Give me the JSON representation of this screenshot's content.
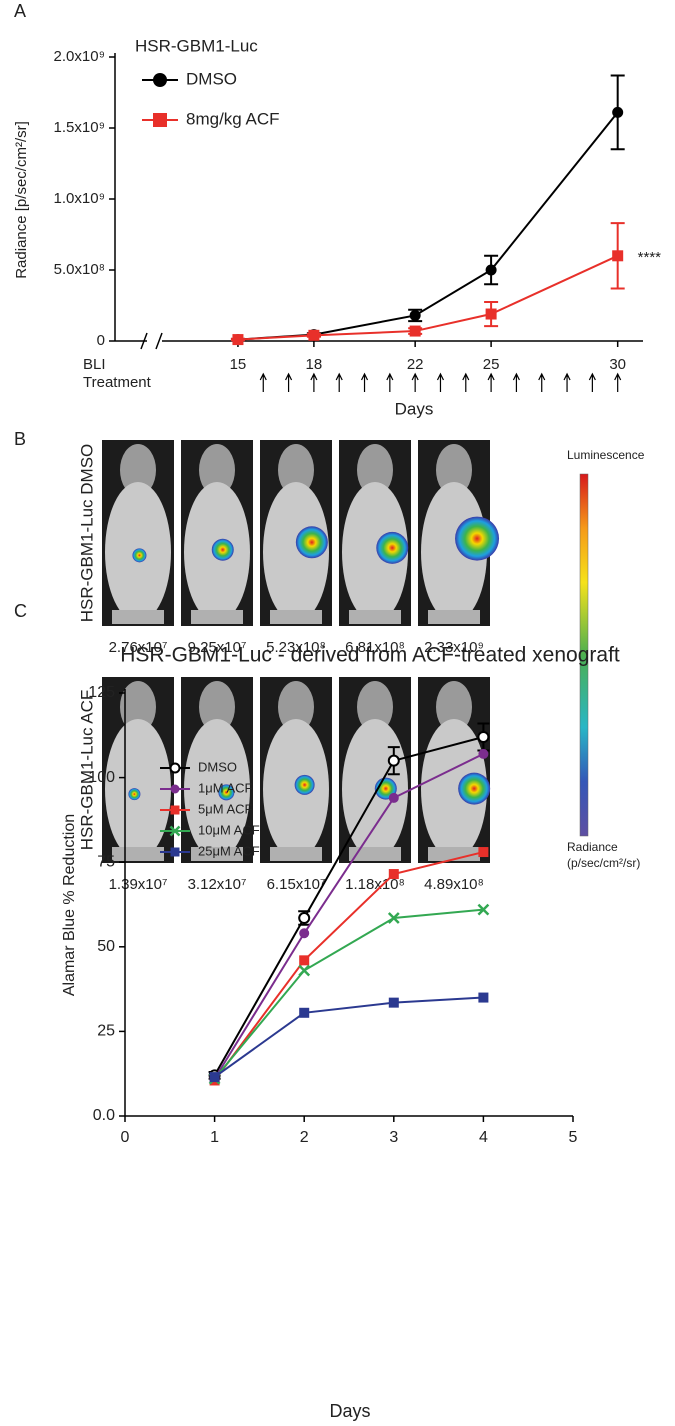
{
  "chart_data": [
    {
      "type": "line",
      "panel_label": "A",
      "subtitle": "HSR-GBM1-Luc",
      "xlabel": "Days",
      "ylabel": "Radiance [p/sec/cm²/sr]",
      "x": [
        15,
        18,
        22,
        25,
        30
      ],
      "series": [
        {
          "name": "DMSO",
          "color": "#000000",
          "marker": "circle",
          "values": [
            10000000,
            45000000,
            180000000,
            500000000,
            1610000000
          ],
          "errors": [
            5000000,
            10000000,
            40000000,
            100000000,
            260000000
          ]
        },
        {
          "name": "8mg/kg ACF",
          "color": "#e8302a",
          "marker": "square",
          "values": [
            10000000,
            40000000,
            70000000,
            190000000,
            600000000
          ],
          "errors": [
            5000000,
            10000000,
            20000000,
            85000000,
            230000000
          ]
        }
      ],
      "xlim": [
        12,
        31
      ],
      "xticks": [
        15,
        18,
        22,
        25,
        30
      ],
      "ylim": [
        0,
        2000000000
      ],
      "yticks": [
        0,
        {
          "value": 500000000,
          "label": "5.0x10⁸"
        },
        {
          "value": 1000000000,
          "label": "1.0x10⁹"
        },
        {
          "value": 1500000000,
          "label": "1.5x10⁹"
        },
        {
          "value": 2000000000,
          "label": "2.0x10⁹"
        }
      ],
      "row_labels": [
        "BLI",
        "Treatment"
      ],
      "treatment_days": [
        16,
        17,
        18,
        19,
        20,
        21,
        22,
        23,
        24,
        25,
        26,
        27,
        28,
        29,
        30
      ],
      "annotation": "****"
    },
    {
      "type": "line",
      "panel_label": "C",
      "title": "HSR-GBM1-Luc - derived from ACF-treated xenograft",
      "xlabel": "Days",
      "ylabel": "Alamar Blue % Reduction",
      "x": [
        1,
        2,
        3,
        4
      ],
      "series": [
        {
          "name": "DMSO",
          "color": "#000000",
          "marker": "open-circle",
          "values": [
            12,
            58.5,
            105,
            112
          ],
          "errors": [
            1,
            2,
            4,
            4
          ]
        },
        {
          "name": "1μM ACF",
          "color": "#7b2d8e",
          "marker": "circle",
          "values": [
            11,
            54,
            94,
            107
          ]
        },
        {
          "name": "5μM ACF",
          "color": "#e8302a",
          "marker": "square",
          "values": [
            10.5,
            46,
            71.5,
            78
          ]
        },
        {
          "name": "10μM ACF",
          "color": "#33a852",
          "marker": "x",
          "values": [
            11,
            43,
            58.5,
            61
          ]
        },
        {
          "name": "25μM ACF",
          "color": "#2b3990",
          "marker": "square",
          "values": [
            11.5,
            30.5,
            33.5,
            35
          ]
        }
      ],
      "xlim": [
        0,
        5
      ],
      "xticks": [
        0,
        1,
        2,
        3,
        4,
        5
      ],
      "ylim": [
        0,
        125
      ],
      "yticks": [
        {
          "value": 0,
          "label": "0.0"
        },
        25,
        50,
        75,
        100,
        125
      ]
    }
  ],
  "panel_b": {
    "label": "B",
    "rows": [
      {
        "name": "HSR-GBM1-Luc DMSO",
        "values": [
          "2.76x10⁷",
          "9.25x10⁷",
          "5.23x10⁸",
          "6.81x10⁸",
          "2.33x10⁹"
        ]
      },
      {
        "name": "HSR-GBM1-Luc ACF",
        "values": [
          "1.39x10⁷",
          "3.12x10⁷",
          "6.15x10⁷",
          "1.18x10⁸",
          "4.89x10⁸"
        ]
      }
    ],
    "colorbar": {
      "title": "Luminescence",
      "unit_line1": "Radiance",
      "unit_line2": "(p/sec/cm²/sr)"
    }
  }
}
